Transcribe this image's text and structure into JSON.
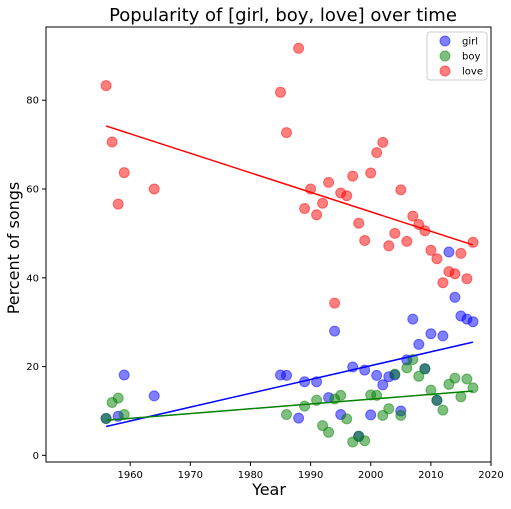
{
  "chart_data": {
    "type": "scatter",
    "title": "Popularity of [girl, boy, love] over time",
    "xlabel": "Year",
    "ylabel": "Percent of songs",
    "xlim": [
      1946,
      2020
    ],
    "ylim": [
      -1.5,
      96.5
    ],
    "x_ticks": [
      1960,
      1970,
      1980,
      1990,
      2000,
      2010,
      2020
    ],
    "y_ticks": [
      0,
      20,
      40,
      60,
      80
    ],
    "grid": false,
    "legend_position": "top-right",
    "series": [
      {
        "name": "girl",
        "color": "#0000ff",
        "points": [
          [
            1956,
            8.3
          ],
          [
            1958,
            8.8
          ],
          [
            1959,
            18.1
          ],
          [
            1964,
            13.4
          ],
          [
            1985,
            18.1
          ],
          [
            1986,
            18.0
          ],
          [
            1988,
            8.4
          ],
          [
            1989,
            16.6
          ],
          [
            1991,
            16.6
          ],
          [
            1993,
            13.0
          ],
          [
            1994,
            28.0
          ],
          [
            1995,
            9.2
          ],
          [
            1997,
            19.9
          ],
          [
            1998,
            4.3
          ],
          [
            1999,
            19.2
          ],
          [
            2000,
            9.1
          ],
          [
            2001,
            18.0
          ],
          [
            2002,
            15.9
          ],
          [
            2003,
            17.7
          ],
          [
            2004,
            18.1
          ],
          [
            2005,
            10.0
          ],
          [
            2006,
            21.5
          ],
          [
            2007,
            30.7
          ],
          [
            2008,
            25.0
          ],
          [
            2009,
            19.5
          ],
          [
            2010,
            27.4
          ],
          [
            2011,
            12.4
          ],
          [
            2012,
            26.9
          ],
          [
            2013,
            45.8
          ],
          [
            2014,
            35.6
          ],
          [
            2015,
            31.4
          ],
          [
            2016,
            30.7
          ],
          [
            2017,
            30.1
          ]
        ],
        "trend": [
          [
            1956,
            6.5
          ],
          [
            2017,
            25.5
          ]
        ]
      },
      {
        "name": "boy",
        "color": "#008000",
        "points": [
          [
            1956,
            8.3
          ],
          [
            1957,
            11.9
          ],
          [
            1958,
            12.9
          ],
          [
            1959,
            9.2
          ],
          [
            1986,
            9.2
          ],
          [
            1989,
            11.1
          ],
          [
            1991,
            12.4
          ],
          [
            1992,
            6.7
          ],
          [
            1993,
            5.2
          ],
          [
            1994,
            12.7
          ],
          [
            1995,
            13.5
          ],
          [
            1996,
            8.2
          ],
          [
            1997,
            3.0
          ],
          [
            1998,
            4.3
          ],
          [
            1999,
            3.3
          ],
          [
            2000,
            13.6
          ],
          [
            2001,
            13.5
          ],
          [
            2002,
            9.0
          ],
          [
            2003,
            10.5
          ],
          [
            2004,
            18.3
          ],
          [
            2005,
            9.0
          ],
          [
            2006,
            19.7
          ],
          [
            2007,
            21.6
          ],
          [
            2008,
            17.8
          ],
          [
            2009,
            19.5
          ],
          [
            2010,
            14.7
          ],
          [
            2011,
            12.4
          ],
          [
            2012,
            10.2
          ],
          [
            2013,
            16.0
          ],
          [
            2014,
            17.4
          ],
          [
            2015,
            13.2
          ],
          [
            2016,
            17.2
          ],
          [
            2017,
            15.2
          ]
        ],
        "trend": [
          [
            1956,
            7.9
          ],
          [
            2017,
            14.5
          ]
        ]
      },
      {
        "name": "love",
        "color": "#ff0000",
        "points": [
          [
            1956,
            83.3
          ],
          [
            1957,
            70.6
          ],
          [
            1958,
            56.6
          ],
          [
            1959,
            63.7
          ],
          [
            1964,
            60.0
          ],
          [
            1985,
            81.8
          ],
          [
            1986,
            72.7
          ],
          [
            1988,
            91.7
          ],
          [
            1989,
            55.6
          ],
          [
            1990,
            60.0
          ],
          [
            1991,
            54.2
          ],
          [
            1992,
            56.8
          ],
          [
            1993,
            61.5
          ],
          [
            1994,
            34.3
          ],
          [
            1995,
            59.1
          ],
          [
            1996,
            58.5
          ],
          [
            1997,
            62.9
          ],
          [
            1998,
            52.3
          ],
          [
            1999,
            48.4
          ],
          [
            2000,
            63.6
          ],
          [
            2001,
            68.2
          ],
          [
            2002,
            70.5
          ],
          [
            2003,
            47.2
          ],
          [
            2004,
            50.0
          ],
          [
            2005,
            59.8
          ],
          [
            2006,
            48.2
          ],
          [
            2007,
            53.9
          ],
          [
            2008,
            52.0
          ],
          [
            2009,
            50.6
          ],
          [
            2010,
            46.2
          ],
          [
            2011,
            44.3
          ],
          [
            2012,
            38.9
          ],
          [
            2013,
            41.4
          ],
          [
            2014,
            40.9
          ],
          [
            2015,
            45.5
          ],
          [
            2016,
            39.8
          ],
          [
            2017,
            48.0
          ]
        ],
        "trend": [
          [
            1956,
            74.2
          ],
          [
            2017,
            47.4
          ]
        ]
      }
    ]
  }
}
